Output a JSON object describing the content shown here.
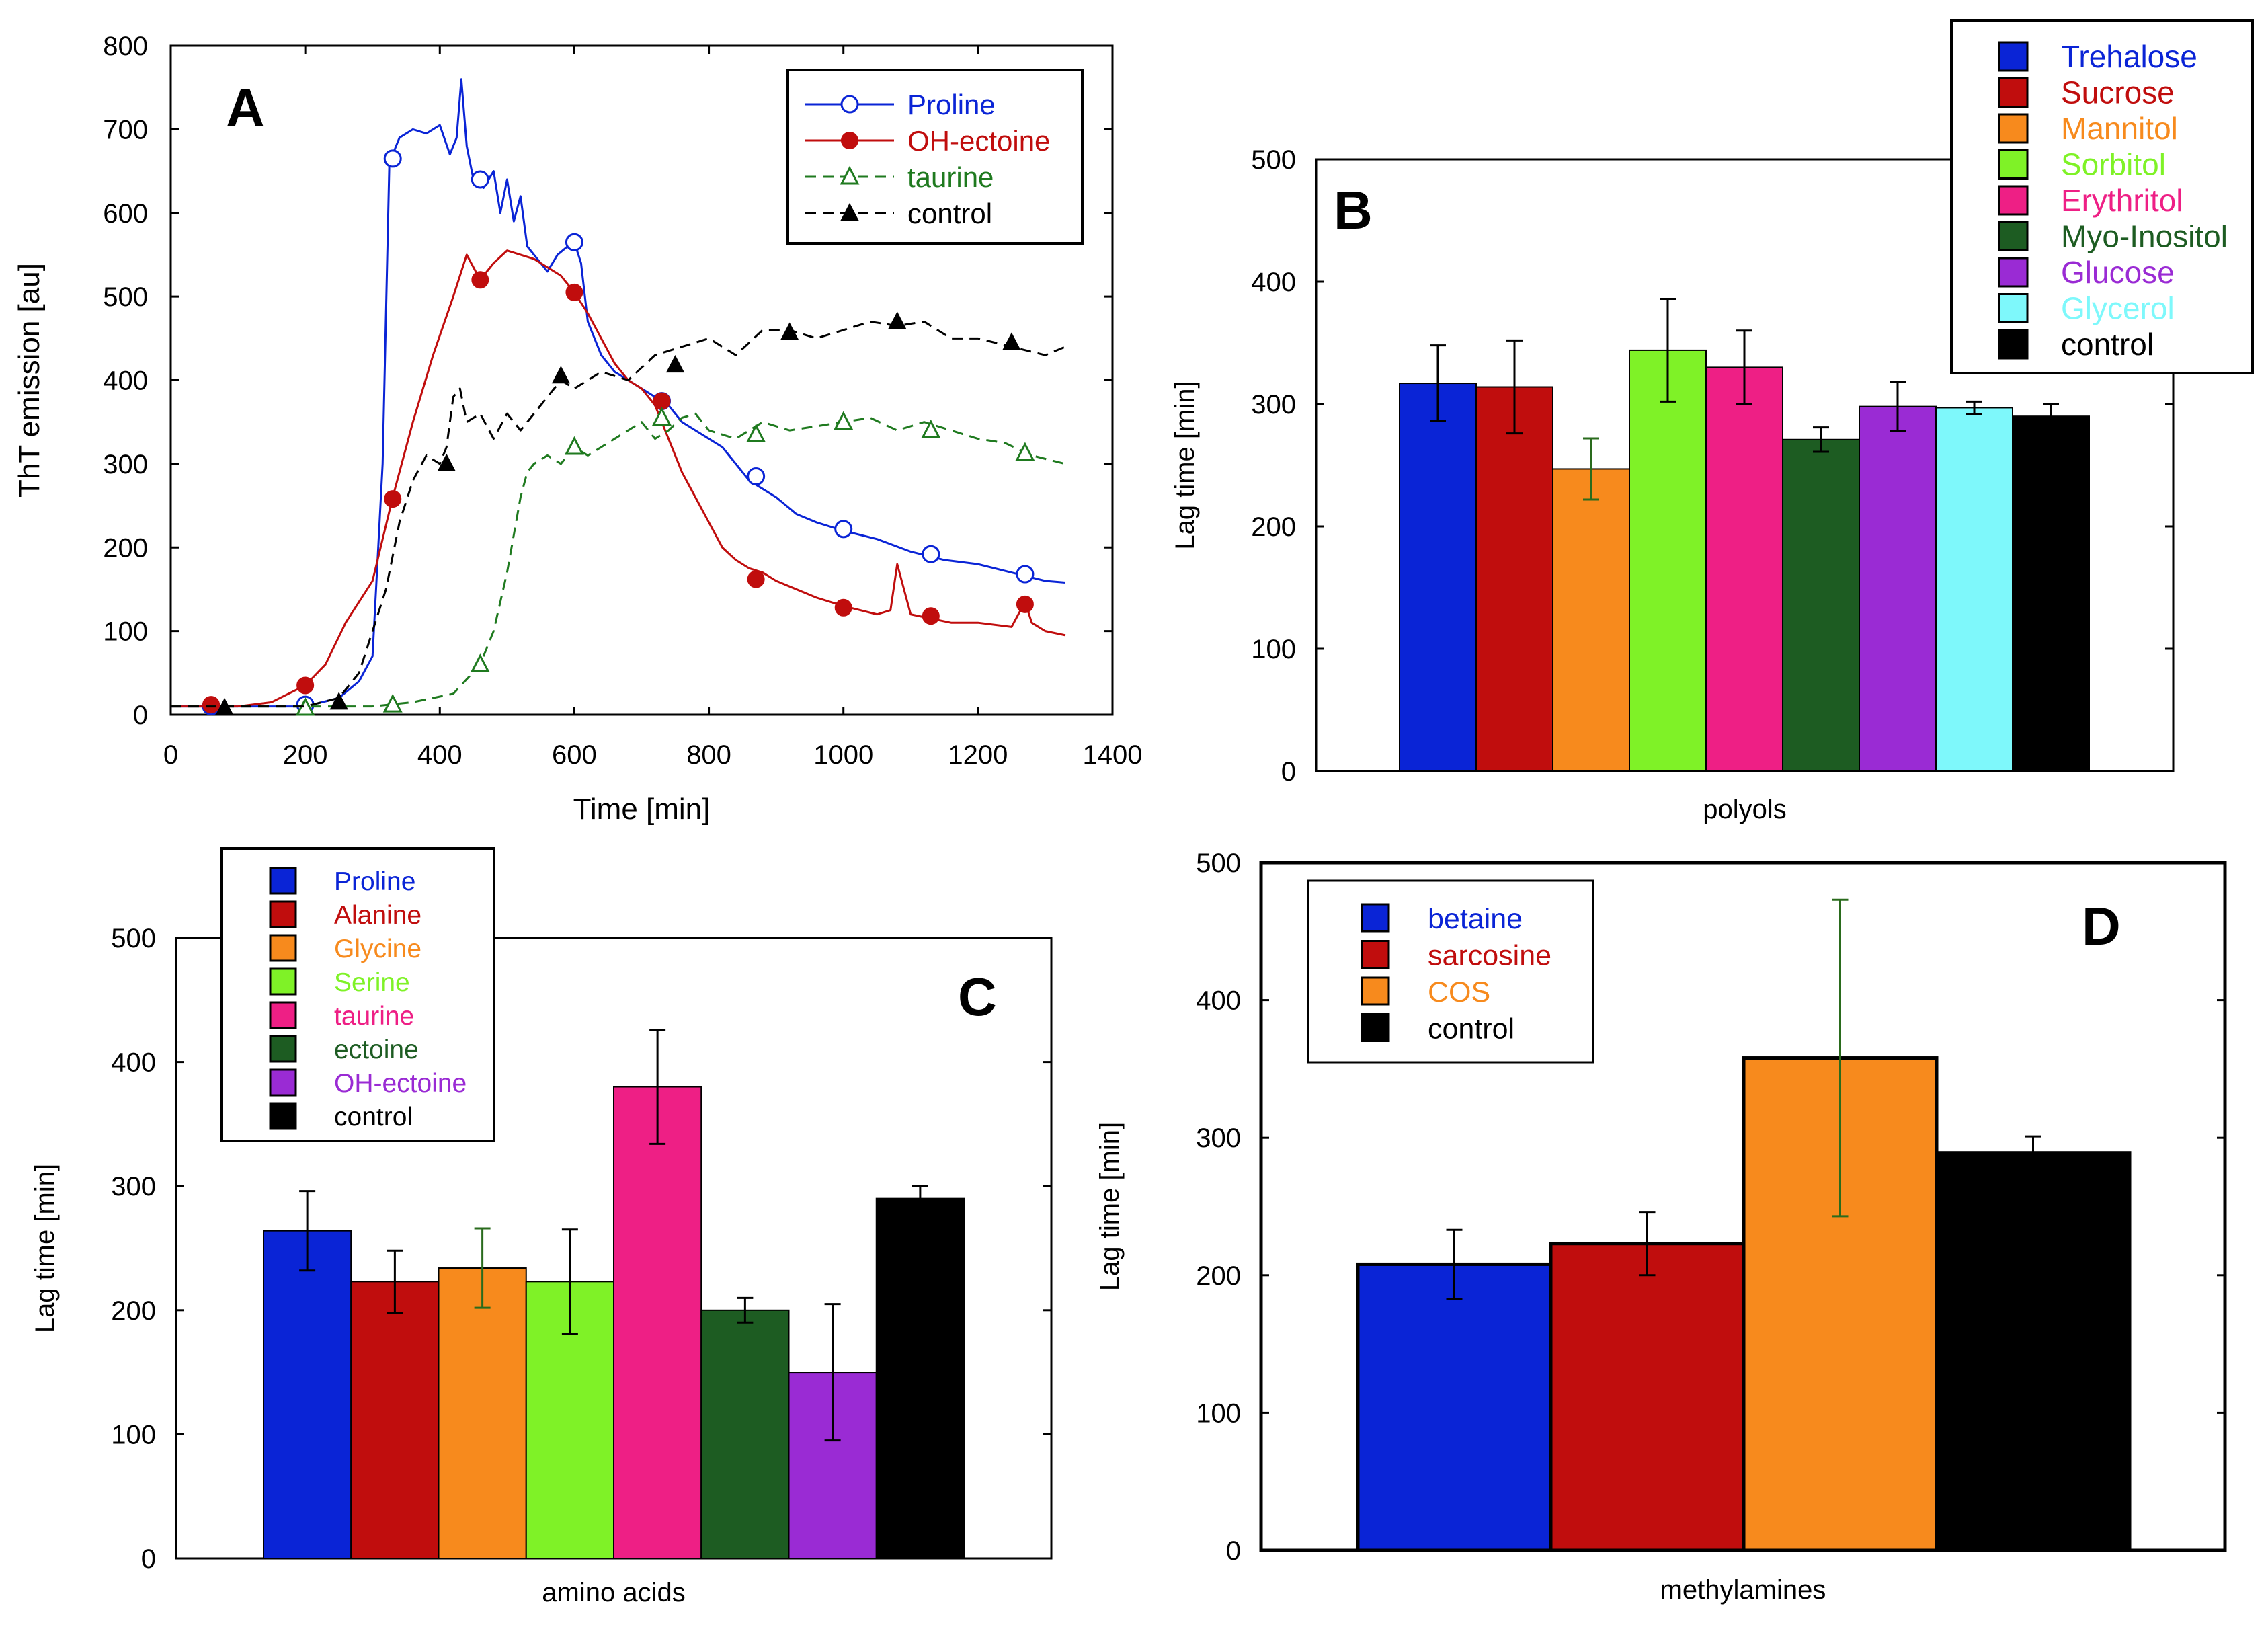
{
  "figure_labels": [
    "A",
    "B",
    "C",
    "D"
  ],
  "colors": {
    "blue": "#0a24d6",
    "red": "#c00d0d",
    "orange": "#f78a1d",
    "lime": "#7ff227",
    "pink": "#ee1f85",
    "darkgreen": "#1d5c22",
    "purple": "#9a2bd4",
    "cyan": "#7ef8fb",
    "black": "#000000",
    "green": "#1f7a1f",
    "errgreen": "#2a6b1d"
  },
  "chart_data": [
    {
      "id": "A",
      "type": "line",
      "panel_label": "A",
      "title": "",
      "xlabel": "Time [min]",
      "ylabel": "ThT emission [au]",
      "xlim": [
        0,
        1400
      ],
      "ylim": [
        0,
        800
      ],
      "xticks": [
        "0",
        "200",
        "400",
        "600",
        "800",
        "1000",
        "1200",
        "1400"
      ],
      "yticks": [
        "0",
        "100",
        "200",
        "300",
        "400",
        "500",
        "600",
        "700",
        "800"
      ],
      "legend_position": "top-right",
      "series": [
        {
          "name": "Proline",
          "color": "#0a24d6",
          "dash": "solid",
          "marker": "open-circle",
          "x": [
            0,
            100,
            200,
            250,
            280,
            300,
            315,
            325,
            340,
            360,
            380,
            400,
            415,
            425,
            432,
            440,
            450,
            465,
            480,
            490,
            500,
            510,
            520,
            530,
            545,
            560,
            575,
            590,
            600,
            610,
            620,
            640,
            660,
            680,
            700,
            720,
            740,
            760,
            780,
            800,
            820,
            840,
            860,
            880,
            900,
            930,
            960,
            1000,
            1050,
            1100,
            1150,
            1200,
            1250,
            1300,
            1330
          ],
          "y": [
            10,
            10,
            10,
            20,
            40,
            70,
            300,
            660,
            690,
            700,
            695,
            705,
            670,
            690,
            760,
            680,
            640,
            630,
            650,
            600,
            640,
            590,
            620,
            560,
            545,
            530,
            550,
            560,
            565,
            540,
            470,
            430,
            410,
            400,
            390,
            380,
            370,
            350,
            340,
            330,
            320,
            300,
            280,
            270,
            260,
            240,
            230,
            220,
            210,
            195,
            185,
            180,
            170,
            160,
            158
          ],
          "markers_x": [
            60,
            200,
            330,
            460,
            600,
            730,
            870,
            1000,
            1130,
            1270
          ],
          "markers_y": [
            10,
            12,
            665,
            640,
            565,
            375,
            285,
            222,
            192,
            168
          ]
        },
        {
          "name": "OH-ectoine",
          "color": "#c00d0d",
          "dash": "solid",
          "marker": "filled-circle",
          "x": [
            0,
            100,
            150,
            200,
            230,
            260,
            300,
            330,
            360,
            390,
            420,
            440,
            460,
            480,
            500,
            520,
            540,
            560,
            580,
            600,
            620,
            640,
            660,
            680,
            700,
            720,
            740,
            760,
            780,
            800,
            820,
            840,
            860,
            880,
            900,
            930,
            960,
            1000,
            1050,
            1070,
            1080,
            1100,
            1130,
            1160,
            1200,
            1250,
            1270,
            1280,
            1300,
            1330
          ],
          "y": [
            10,
            10,
            15,
            35,
            60,
            110,
            160,
            260,
            350,
            430,
            500,
            550,
            520,
            540,
            555,
            550,
            545,
            535,
            525,
            505,
            480,
            450,
            420,
            400,
            390,
            370,
            330,
            290,
            260,
            230,
            200,
            185,
            175,
            170,
            160,
            150,
            140,
            130,
            120,
            125,
            180,
            120,
            115,
            110,
            110,
            105,
            135,
            110,
            100,
            95
          ],
          "markers_x": [
            60,
            200,
            330,
            460,
            600,
            730,
            870,
            1000,
            1130,
            1270
          ],
          "markers_y": [
            12,
            35,
            258,
            520,
            505,
            375,
            162,
            128,
            118,
            132
          ]
        },
        {
          "name": "taurine",
          "color": "#1f7a1f",
          "dash": "dashed",
          "marker": "open-triangle",
          "x": [
            0,
            100,
            200,
            300,
            360,
            420,
            460,
            480,
            500,
            520,
            530,
            540,
            560,
            580,
            600,
            620,
            640,
            660,
            680,
            700,
            720,
            740,
            760,
            780,
            800,
            840,
            880,
            920,
            960,
            1000,
            1040,
            1080,
            1120,
            1160,
            1200,
            1240,
            1280,
            1330
          ],
          "y": [
            10,
            10,
            10,
            10,
            15,
            25,
            60,
            100,
            170,
            260,
            290,
            300,
            310,
            300,
            320,
            310,
            320,
            330,
            340,
            350,
            330,
            340,
            355,
            360,
            340,
            330,
            350,
            340,
            345,
            350,
            355,
            340,
            350,
            340,
            330,
            325,
            310,
            300
          ],
          "markers_x": [
            200,
            330,
            460,
            600,
            730,
            870,
            1000,
            1130,
            1270
          ],
          "markers_y": [
            8,
            12,
            60,
            320,
            355,
            335,
            350,
            340,
            313
          ]
        },
        {
          "name": "control",
          "color": "#000000",
          "dash": "dashed",
          "marker": "filled-triangle",
          "x": [
            0,
            100,
            150,
            200,
            250,
            280,
            300,
            320,
            340,
            360,
            380,
            400,
            410,
            420,
            430,
            440,
            460,
            480,
            500,
            520,
            540,
            560,
            580,
            600,
            640,
            680,
            720,
            760,
            800,
            840,
            880,
            920,
            960,
            1000,
            1040,
            1080,
            1120,
            1160,
            1200,
            1250,
            1300,
            1330
          ],
          "y": [
            10,
            10,
            10,
            10,
            20,
            50,
            100,
            150,
            230,
            280,
            310,
            300,
            320,
            380,
            390,
            350,
            360,
            330,
            360,
            340,
            360,
            380,
            400,
            390,
            410,
            400,
            430,
            440,
            450,
            430,
            460,
            460,
            450,
            460,
            470,
            465,
            470,
            450,
            450,
            440,
            430,
            440
          ],
          "markers_x": [
            80,
            250,
            410,
            580,
            750,
            920,
            1080,
            1250
          ],
          "markers_y": [
            8,
            15,
            300,
            405,
            418,
            457,
            470,
            445
          ]
        }
      ]
    },
    {
      "id": "B",
      "type": "bar",
      "panel_label": "B",
      "xlabel": "polyols",
      "ylabel": "Lag time [min]",
      "ylim": [
        0,
        500
      ],
      "yticks": [
        "0",
        "100",
        "200",
        "300",
        "400",
        "500"
      ],
      "legend_position": "top-right",
      "categories": [
        "Trehalose",
        "Sucrose",
        "Mannitol",
        "Sorbitol",
        "Erythritol",
        "Myo-Inositol",
        "Glucose",
        "Glycerol",
        "control"
      ],
      "values": [
        317,
        314,
        247,
        344,
        330,
        271,
        298,
        297,
        290
      ],
      "errors": [
        31,
        38,
        25,
        42,
        30,
        10,
        20,
        5,
        10
      ],
      "colors": [
        "#0a24d6",
        "#c00d0d",
        "#f78a1d",
        "#7ff227",
        "#ee1f85",
        "#1d5c22",
        "#9a2bd4",
        "#7ef8fb",
        "#000000"
      ],
      "error_colors": [
        "#000000",
        "#000000",
        "#2a6b1d",
        "#000000",
        "#000000",
        "#000000",
        "#000000",
        "#000000",
        "#000000"
      ]
    },
    {
      "id": "C",
      "type": "bar",
      "panel_label": "C",
      "xlabel": "amino acids",
      "ylabel": "Lag time [min]",
      "ylim": [
        0,
        500
      ],
      "yticks": [
        "0",
        "100",
        "200",
        "300",
        "400",
        "500"
      ],
      "legend_position": "top-left",
      "categories": [
        "Proline",
        "Alanine",
        "Glycine",
        "Serine",
        "taurine",
        "ectoine",
        "OH-ectoine",
        "control"
      ],
      "values": [
        264,
        223,
        234,
        223,
        380,
        200,
        150,
        290
      ],
      "errors": [
        32,
        25,
        32,
        42,
        46,
        10,
        55,
        10
      ],
      "colors": [
        "#0a24d6",
        "#c00d0d",
        "#f78a1d",
        "#7ff227",
        "#ee1f85",
        "#1d5c22",
        "#9a2bd4",
        "#000000"
      ],
      "error_colors": [
        "#000000",
        "#000000",
        "#2a6b1d",
        "#000000",
        "#000000",
        "#000000",
        "#000000",
        "#000000"
      ]
    },
    {
      "id": "D",
      "type": "bar",
      "panel_label": "D",
      "xlabel": "methylamines",
      "ylabel": "Lag time [min]",
      "ylim": [
        0,
        500
      ],
      "yticks": [
        "0",
        "100",
        "200",
        "300",
        "400",
        "500"
      ],
      "legend_position": "top-left",
      "categories": [
        "betaine",
        "sarcosine",
        "COS",
        "control"
      ],
      "values": [
        208,
        223,
        358,
        289
      ],
      "errors": [
        25,
        23,
        115,
        12
      ],
      "colors": [
        "#0a24d6",
        "#c00d0d",
        "#f78a1d",
        "#000000"
      ],
      "error_colors": [
        "#000000",
        "#000000",
        "#2a6b1d",
        "#000000"
      ]
    }
  ]
}
